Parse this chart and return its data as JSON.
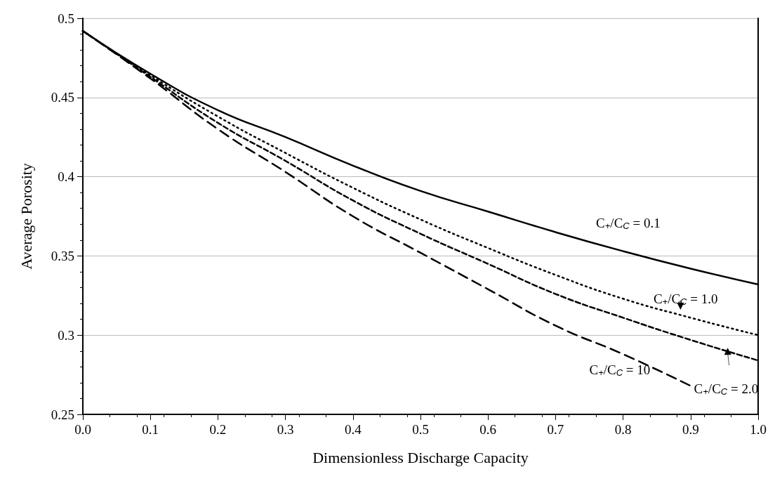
{
  "chart_data": {
    "type": "line",
    "xlabel": "Dimensionless Discharge Capacity",
    "ylabel": "Average Porosity",
    "x": [
      0,
      0.1,
      0.2,
      0.3,
      0.4,
      0.5,
      0.6,
      0.7,
      0.8,
      0.9,
      1.0
    ],
    "series": [
      {
        "name": "C$_{+}$/C$_{C}$ = 0.1",
        "color": "#000000",
        "line_style": "solid",
        "values": [
          0.492,
          0.465,
          0.442,
          0.425,
          0.407,
          0.391,
          0.378,
          0.365,
          0.353,
          0.342,
          0.332
        ]
      },
      {
        "name": "C$_{+}$/C$_{C}$ = 1.0",
        "color": "#000000",
        "line_style": "dotted",
        "values": [
          0.492,
          0.464,
          0.438,
          0.415,
          0.393,
          0.373,
          0.355,
          0.338,
          0.323,
          0.311,
          0.3
        ]
      },
      {
        "name": "C$_{+}$/C$_{C}$ = 2.0",
        "color": "#000000",
        "line_style": "dashed",
        "values": [
          0.492,
          0.463,
          0.434,
          0.41,
          0.385,
          0.364,
          0.345,
          0.326,
          0.311,
          0.297,
          0.284
        ]
      },
      {
        "name": "C$_{+}$/C$_{C}$ = 10",
        "color": "#000000",
        "line_style": "dashed",
        "values": [
          0.492,
          0.462,
          0.43,
          0.403,
          0.375,
          0.352,
          0.329,
          0.306,
          0.288,
          0.268,
          null
        ]
      }
    ],
    "xlim": [
      0,
      1
    ],
    "ylim": [
      0.25,
      0.5
    ],
    "xticks": [
      {
        "value": 0,
        "label": "0.0"
      },
      0.1,
      0.2,
      0.3,
      0.4,
      0.5,
      0.6,
      0.7,
      0.8,
      0.9,
      {
        "value": 1,
        "label": "1.0"
      }
    ],
    "yticks": [
      0.25,
      0.3,
      0.35,
      0.4,
      0.45,
      0.5
    ],
    "grid": "y",
    "marker": "none"
  }
}
